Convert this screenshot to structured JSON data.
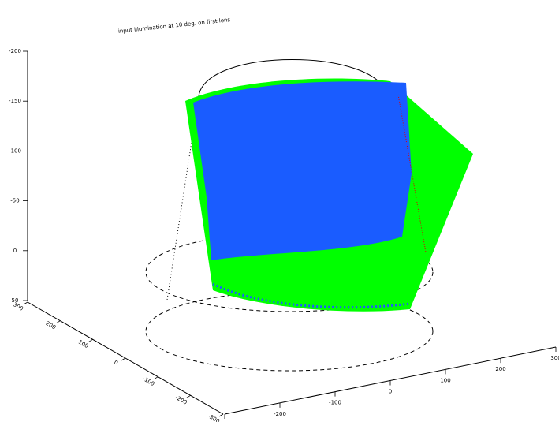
{
  "chart_data": {
    "type": "surface3d",
    "title": "input illumination at 10 deg. on first lens",
    "zlim": [
      -200,
      50
    ],
    "zticks": [
      -200,
      -150,
      -100,
      -50,
      0,
      50
    ],
    "ylim": [
      300,
      -300
    ],
    "yticks": [
      300,
      200,
      100,
      0,
      -100,
      -200,
      -300
    ],
    "xlim": [
      -300,
      300
    ],
    "xticks": [
      -300,
      -200,
      -100,
      0,
      100,
      200,
      300
    ]
  }
}
